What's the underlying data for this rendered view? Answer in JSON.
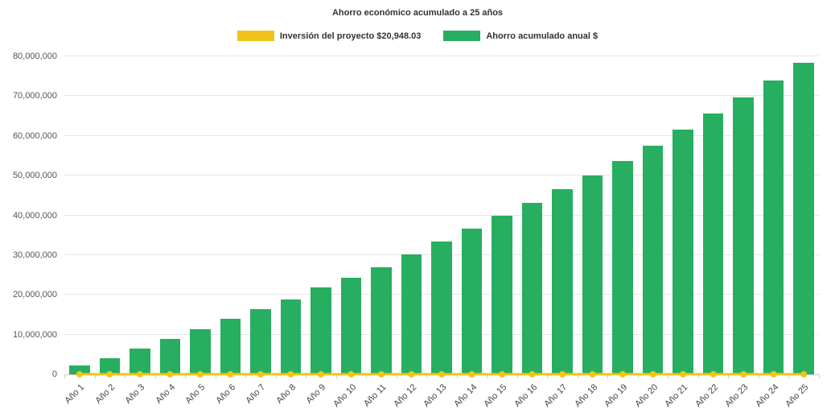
{
  "chart_data": {
    "type": "bar",
    "title": "Ahorro económico acumulado a 25 años",
    "categories": [
      "Año 1",
      "Año 2",
      "Año 3",
      "Año 4",
      "Año 5",
      "Año 6",
      "Año 7",
      "Año 8",
      "Año 9",
      "Año 10",
      "Año 11",
      "Año 12",
      "Año 13",
      "Año 14",
      "Año 15",
      "Año 16",
      "Año 17",
      "Año 18",
      "Año 19",
      "Año 20",
      "Año 21",
      "Año 22",
      "Año 23",
      "Año 24",
      "Año 25"
    ],
    "series": [
      {
        "name": "Inversión del proyecto $20,948.03",
        "type": "line",
        "color": "#f0c419",
        "constant_value": 20948.03
      },
      {
        "name": "Ahorro acumulado anual $",
        "type": "bar",
        "color": "#27ae60",
        "values": [
          2200000,
          4100000,
          6500000,
          8900000,
          11400000,
          13900000,
          16500000,
          18900000,
          21800000,
          24400000,
          27000000,
          30100000,
          33400000,
          36600000,
          40000000,
          43200000,
          46500000,
          50000000,
          53700000,
          57500000,
          61600000,
          65600000,
          69700000,
          73900000,
          78300000
        ]
      }
    ],
    "xlabel": "",
    "ylabel": "",
    "ylim": [
      0,
      80000000
    ],
    "ytick_interval": 10000000,
    "ytick_labels": [
      "0",
      "10,000,000",
      "20,000,000",
      "30,000,000",
      "40,000,000",
      "50,000,000",
      "60,000,000",
      "70,000,000",
      "80,000,000"
    ],
    "grid": true,
    "legend_position": "top"
  }
}
